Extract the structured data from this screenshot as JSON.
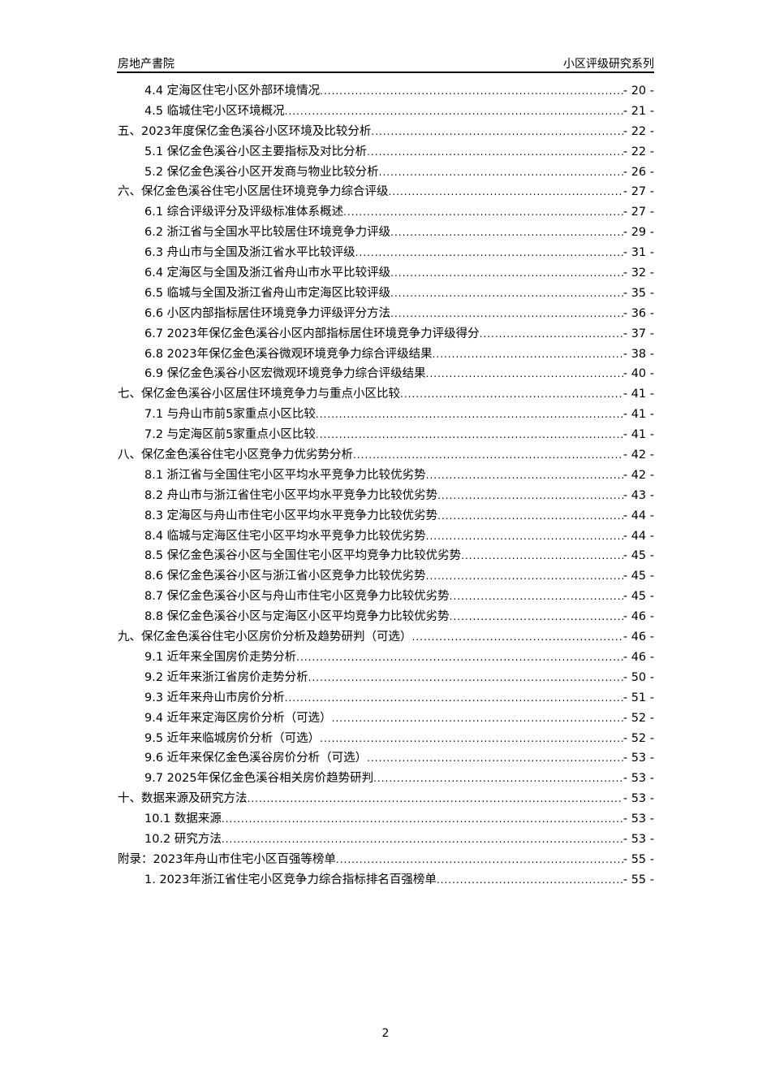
{
  "header": {
    "left": "房地产書院",
    "right": "小区评级研究系列"
  },
  "toc": [
    {
      "label": "4.4 定海区住宅小区外部环境情况",
      "page": "- 20 -",
      "level": 2
    },
    {
      "label": "4.5 临城住宅小区环境概况",
      "page": "- 21 -",
      "level": 2
    },
    {
      "label": "五、2023年度保亿金色溪谷小区环境及比较分析",
      "page": "- 22 -",
      "level": 1
    },
    {
      "label": "5.1 保亿金色溪谷小区主要指标及对比分析",
      "page": "- 22 -",
      "level": 2
    },
    {
      "label": "5.2 保亿金色溪谷小区开发商与物业比较分析",
      "page": "- 26 -",
      "level": 2
    },
    {
      "label": "六、保亿金色溪谷住宅小区居住环境竞争力综合评级",
      "page": "- 27 -",
      "level": 1
    },
    {
      "label": "6.1 综合评级评分及评级标准体系概述",
      "page": "- 27 -",
      "level": 2
    },
    {
      "label": "6.2 浙江省与全国水平比较居住环境竞争力评级",
      "page": "- 29 -",
      "level": 2
    },
    {
      "label": "6.3 舟山市与全国及浙江省水平比较评级",
      "page": "- 31 -",
      "level": 2
    },
    {
      "label": "6.4 定海区与全国及浙江省舟山市水平比较评级",
      "page": "- 32 -",
      "level": 2
    },
    {
      "label": "6.5 临城与全国及浙江省舟山市定海区比较评级",
      "page": "- 35 -",
      "level": 2
    },
    {
      "label": "6.6 小区内部指标居住环境竞争力评级评分方法",
      "page": "- 36 -",
      "level": 2
    },
    {
      "label": "6.7 2023年保亿金色溪谷小区内部指标居住环境竞争力评级得分",
      "page": "- 37 -",
      "level": 2
    },
    {
      "label": "6.8 2023年保亿金色溪谷微观环境竞争力综合评级结果",
      "page": "- 38 -",
      "level": 2
    },
    {
      "label": "6.9 保亿金色溪谷小区宏微观环境竞争力综合评级结果",
      "page": "- 40 -",
      "level": 2
    },
    {
      "label": "七、保亿金色溪谷小区居住环境竞争力与重点小区比较",
      "page": "- 41 -",
      "level": 1
    },
    {
      "label": "7.1 与舟山市前5家重点小区比较",
      "page": "- 41 -",
      "level": 2
    },
    {
      "label": "7.2 与定海区前5家重点小区比较",
      "page": "- 41 -",
      "level": 2
    },
    {
      "label": "八、保亿金色溪谷住宅小区竞争力优劣势分析",
      "page": "- 42 -",
      "level": 1
    },
    {
      "label": "8.1 浙江省与全国住宅小区平均水平竞争力比较优劣势",
      "page": "- 42 -",
      "level": 2
    },
    {
      "label": "8.2 舟山市与浙江省住宅小区平均水平竞争力比较优劣势",
      "page": "- 43 -",
      "level": 2
    },
    {
      "label": "8.3 定海区与舟山市住宅小区平均水平竞争力比较优劣势",
      "page": "- 44 -",
      "level": 2
    },
    {
      "label": "8.4 临城与定海区住宅小区平均水平竞争力比较优劣势",
      "page": "- 44 -",
      "level": 2
    },
    {
      "label": "8.5 保亿金色溪谷小区与全国住宅小区平均竞争力比较优劣势",
      "page": "- 45 -",
      "level": 2
    },
    {
      "label": "8.6 保亿金色溪谷小区与浙江省小区竞争力比较优劣势",
      "page": "- 45 -",
      "level": 2
    },
    {
      "label": "8.7 保亿金色溪谷小区与舟山市住宅小区竞争力比较优劣势",
      "page": "- 45 -",
      "level": 2
    },
    {
      "label": "8.8 保亿金色溪谷小区与定海区小区平均竞争力比较优劣势",
      "page": "- 46 -",
      "level": 2
    },
    {
      "label": "九、保亿金色溪谷住宅小区房价分析及趋势研判（可选）",
      "page": "- 46 -",
      "level": 1
    },
    {
      "label": "9.1 近年来全国房价走势分析",
      "page": "- 46 -",
      "level": 2
    },
    {
      "label": "9.2 近年来浙江省房价走势分析",
      "page": "- 50 -",
      "level": 2
    },
    {
      "label": "9.3 近年来舟山市房价分析",
      "page": "- 51 -",
      "level": 2
    },
    {
      "label": "9.4 近年来定海区房价分析（可选）",
      "page": "- 52 -",
      "level": 2
    },
    {
      "label": "9.5 近年来临城房价分析（可选）",
      "page": "- 52 -",
      "level": 2
    },
    {
      "label": "9.6 近年来保亿金色溪谷房价分析（可选）",
      "page": "- 53 -",
      "level": 2
    },
    {
      "label": "9.7 2025年保亿金色溪谷相关房价趋势研判",
      "page": "- 53 -",
      "level": 2
    },
    {
      "label": "十、数据来源及研究方法",
      "page": "- 53 -",
      "level": 1
    },
    {
      "label": "10.1 数据来源",
      "page": "- 53 -",
      "level": 2
    },
    {
      "label": "10.2 研究方法",
      "page": "- 53 -",
      "level": 2
    },
    {
      "label": "附录：2023年舟山市住宅小区百强等榜单",
      "page": "- 55 -",
      "level": 1
    },
    {
      "label": "1. 2023年浙江省住宅小区竞争力综合指标排名百强榜单",
      "page": "- 55 -",
      "level": 2
    }
  ],
  "page_number": "2"
}
